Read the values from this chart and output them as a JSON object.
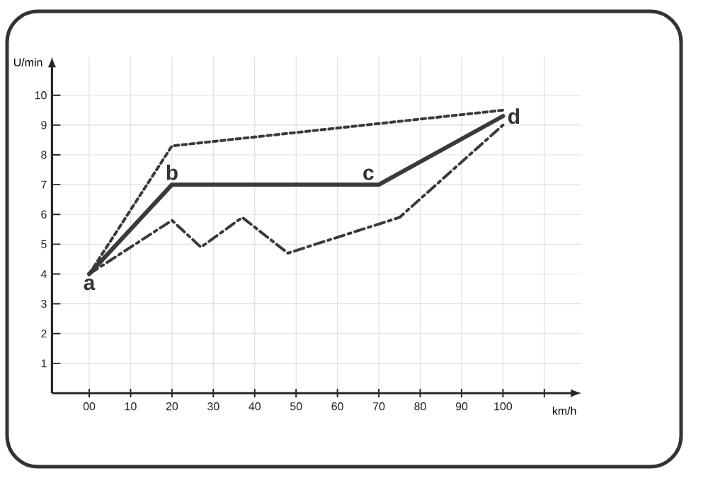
{
  "chart_data": {
    "type": "line",
    "xlabel": "km/h",
    "ylabel": "U/min",
    "xlim": [
      -9,
      119
    ],
    "ylim": [
      0,
      11.3
    ],
    "xticks": [
      {
        "value": 0,
        "label": "00"
      },
      10,
      20,
      30,
      40,
      50,
      60,
      70,
      80,
      90,
      100,
      {
        "value": 110,
        "label": null
      }
    ],
    "yticks": [
      1,
      2,
      3,
      4,
      5,
      6,
      7,
      8,
      9,
      10
    ],
    "grid": true,
    "marker": "none",
    "series": [
      {
        "color": "#3a3a3a",
        "x": [
          0,
          20,
          70,
          100
        ],
        "values": [
          4,
          7,
          7,
          9.3
        ],
        "line_style": "solid"
      },
      {
        "color": "#3a3a3a",
        "x": [
          0,
          20,
          100
        ],
        "values": [
          4,
          8.3,
          9.5
        ],
        "line_style": "dashed"
      },
      {
        "color": "#3a3a3a",
        "x": [
          0,
          20,
          27,
          37,
          48,
          75,
          100
        ],
        "values": [
          4,
          5.8,
          4.9,
          5.9,
          4.7,
          5.9,
          9.0
        ],
        "line_style": "dashdot"
      }
    ],
    "annotations": [
      {
        "text": "a",
        "x": 0,
        "y": 4
      },
      {
        "text": "b",
        "x": 20,
        "y": 7
      },
      {
        "text": "c",
        "x": 70,
        "y": 7
      },
      {
        "text": "d",
        "x": 100,
        "y": 9.3
      }
    ]
  }
}
